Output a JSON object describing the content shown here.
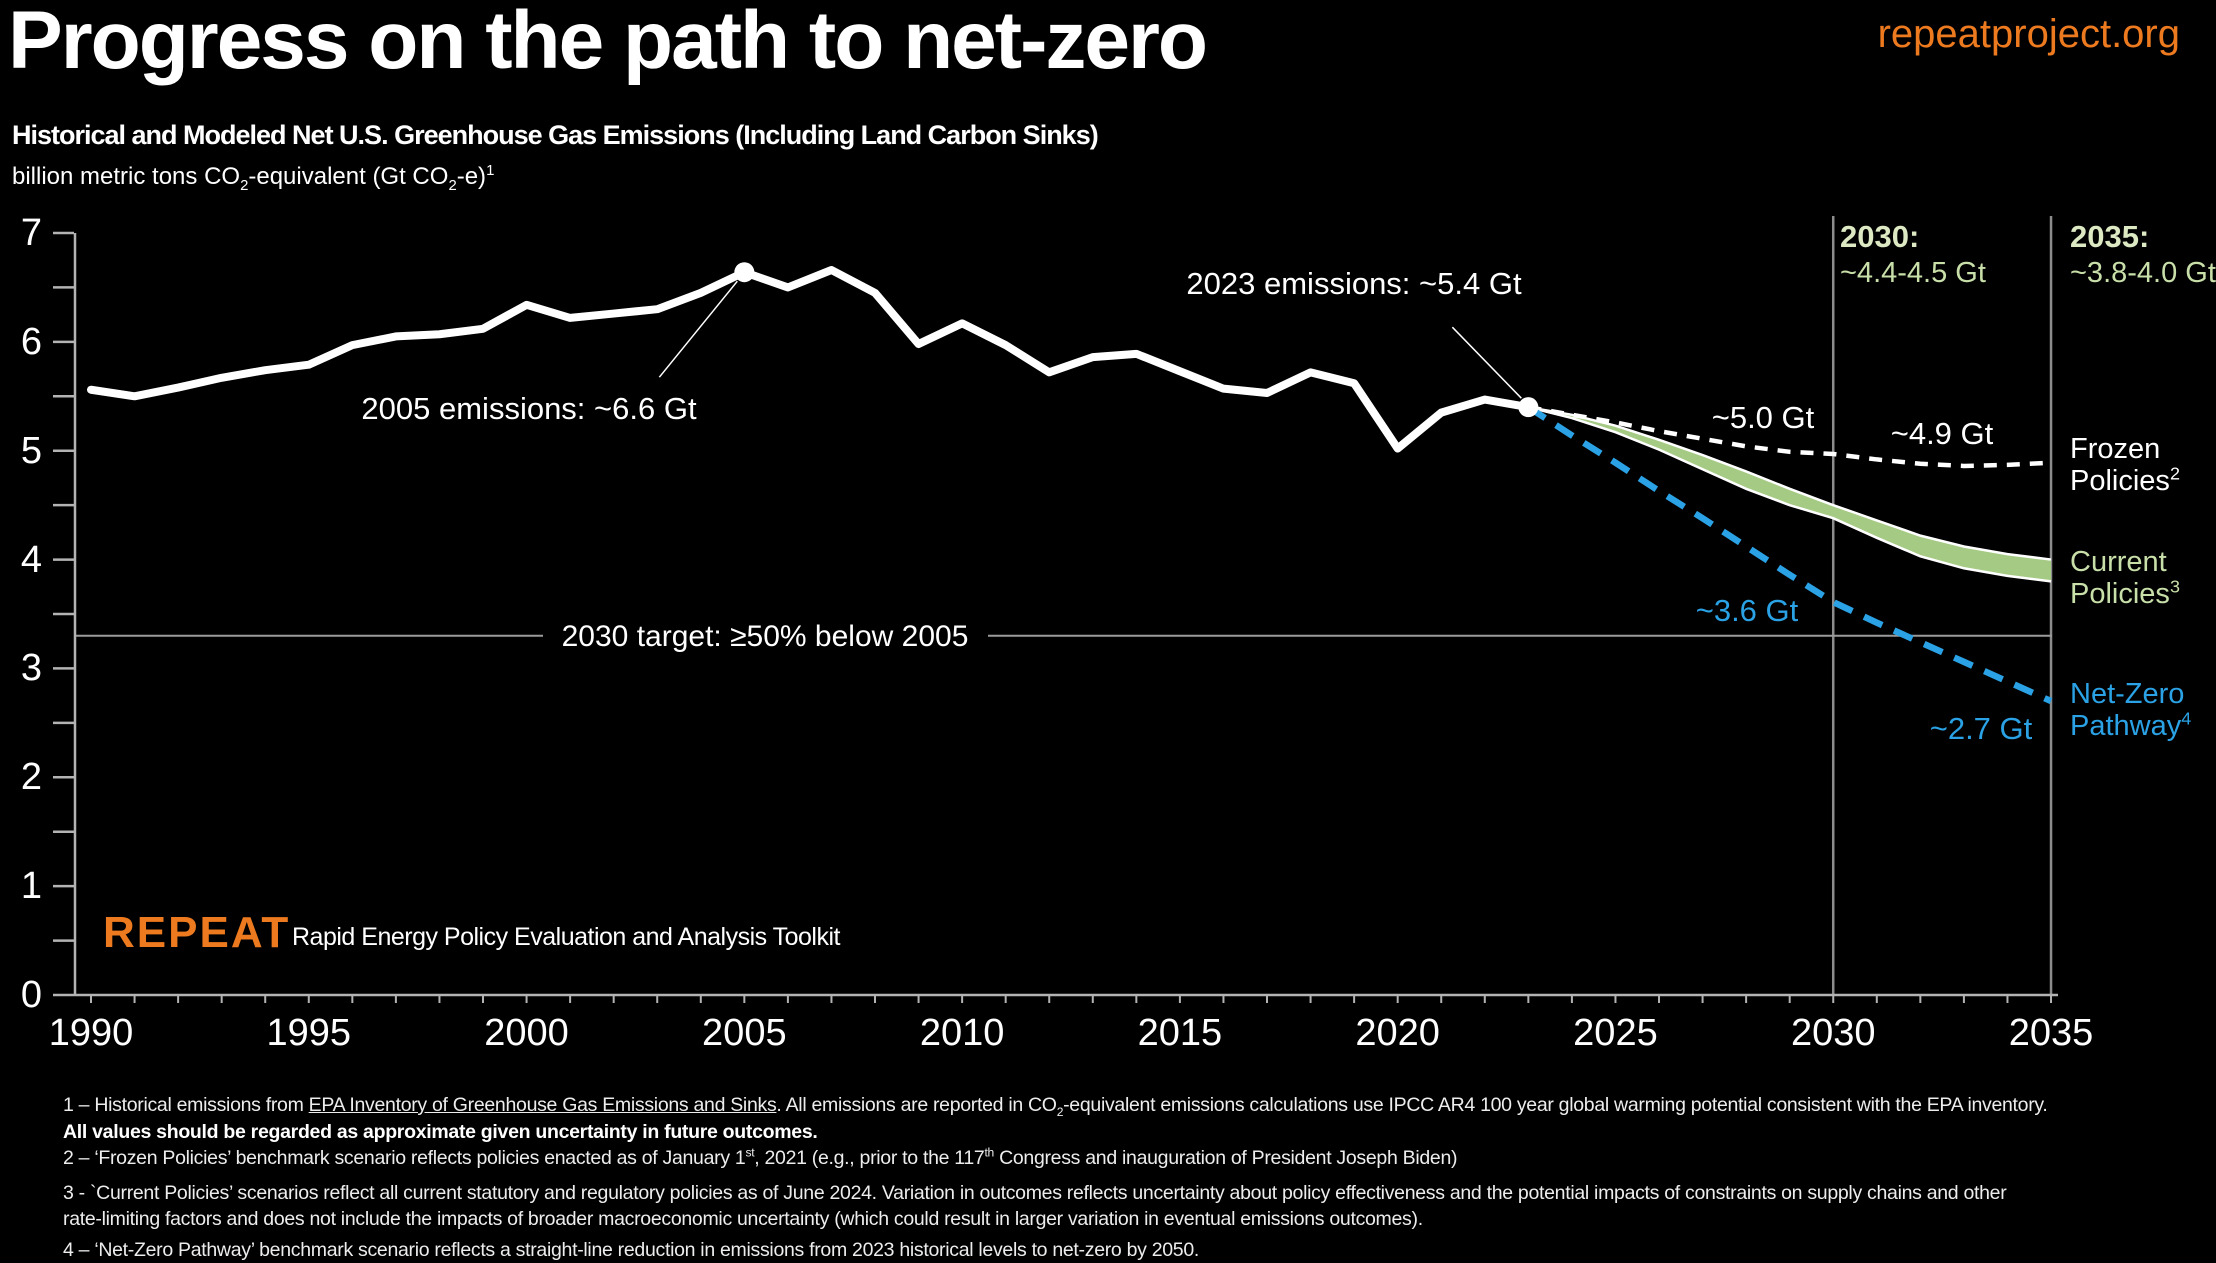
{
  "header": {
    "title": "Progress on the path to net-zero",
    "site": "repeatproject.org"
  },
  "chart_header": {
    "subtitle": "Historical and Modeled Net U.S. Greenhouse Gas Emissions (Including Land Carbon Sinks)"
  },
  "units_segments": [
    {
      "t": "billion metric tons CO"
    },
    {
      "t": "2",
      "s": "sub"
    },
    {
      "t": "-equivalent (Gt CO"
    },
    {
      "t": "2",
      "s": "sub"
    },
    {
      "t": "-e)"
    },
    {
      "t": "1",
      "s": "sup"
    }
  ],
  "logo": {
    "name": "REPEAT",
    "tagline": "Rapid Energy Policy Evaluation and Analysis Toolkit"
  },
  "annotations": {
    "e2005": "2005 emissions: ~6.6 Gt",
    "e2023": "2023 emissions: ~5.4 Gt",
    "target": "2030 target: ≥50% below 2005",
    "frozen_2030": "~5.0 Gt",
    "frozen_2035": "~4.9 Gt",
    "netzero_2030": "~3.6 Gt",
    "netzero_2035": "~2.7 Gt",
    "hdr_2030_year": "2030:",
    "hdr_2030_range": "~4.4-4.5 Gt",
    "hdr_2035_year": "2035:",
    "hdr_2035_range": "~3.8-4.0 Gt"
  },
  "scenario_labels": {
    "frozen": {
      "l1": [
        {
          "t": "Frozen"
        }
      ],
      "l2": [
        {
          "t": "Policies"
        },
        {
          "t": "2",
          "s": "sup"
        }
      ]
    },
    "current": {
      "l1": [
        {
          "t": "Current"
        }
      ],
      "l2": [
        {
          "t": "Policies"
        },
        {
          "t": "3",
          "s": "sup"
        }
      ]
    },
    "netzero": {
      "l1": [
        {
          "t": "Net-Zero"
        }
      ],
      "l2": [
        {
          "t": "Pathway"
        },
        {
          "t": "4",
          "s": "sup"
        }
      ]
    }
  },
  "footnotes": [
    {
      "seg": [
        {
          "t": "1 – Historical emissions from "
        },
        {
          "t": "EPA Inventory of Greenhouse Gas Emissions and Sinks",
          "s": "u"
        },
        {
          "t": ". All emissions are reported in CO"
        },
        {
          "t": "2",
          "s": "sub"
        },
        {
          "t": "-equivalent emissions calculations use IPCC AR4 100 year global warming potential consistent with the EPA inventory."
        }
      ]
    },
    {
      "seg": [
        {
          "t": "All values should be regarded as approximate given uncertainty in future outcomes.",
          "s": "b"
        }
      ]
    },
    {
      "seg": [
        {
          "t": "2 – ‘Frozen Policies’ benchmark scenario reflects policies enacted as of January 1"
        },
        {
          "t": "st",
          "s": "sup"
        },
        {
          "t": ", 2021 (e.g., prior to the 117"
        },
        {
          "t": "th",
          "s": "sup"
        },
        {
          "t": " Congress and inauguration of President Joseph Biden)"
        }
      ]
    },
    {
      "seg": [
        {
          "t": "3 - `Current Policies’ scenarios reflect all current statutory and regulatory policies as of June 2024. Variation in outcomes reflects uncertainty about policy effectiveness and the potential impacts of constraints on supply chains and other"
        }
      ]
    },
    {
      "seg": [
        {
          "t": "rate-limiting factors and does not include the impacts of broader macroeconomic uncertainty (which could result in larger variation in eventual emissions outcomes)."
        }
      ]
    },
    {
      "seg": [
        {
          "t": "4 – ‘Net-Zero Pathway’ benchmark scenario reflects a straight-line reduction in emissions from 2023 historical levels to net-zero by 2050."
        }
      ]
    }
  ],
  "colors": {
    "background": "#000000",
    "accent_orange": "#ED7A1F",
    "line_white": "#FFFFFF",
    "band_green": "#A5CA84",
    "text_green": "#C8DFA9",
    "blue": "#2AA2E5",
    "grid_gray": "#9B9B9B",
    "axis_gray": "#B3B3B3"
  },
  "chart_data": {
    "type": "line",
    "title": "Historical and Modeled Net U.S. Greenhouse Gas Emissions (Including Land Carbon Sinks)",
    "ylabel": "billion metric tons CO2-equivalent (Gt CO2-e)",
    "xlim": [
      1990,
      2035
    ],
    "ylim": [
      0,
      7
    ],
    "x_ticks": [
      1990,
      1995,
      2000,
      2005,
      2010,
      2015,
      2020,
      2025,
      2030,
      2035
    ],
    "y_ticks": [
      0,
      1,
      2,
      3,
      4,
      5,
      6,
      7
    ],
    "y_minor_tick_step": 0.5,
    "grid": false,
    "legend_position": "right",
    "target_line": {
      "value": 3.3,
      "label": "2030 target: ≥50% below 2005"
    },
    "ref_years": [
      2030,
      2035
    ],
    "series": [
      {
        "name": "Historical",
        "style": "solid",
        "color": "#FFFFFF",
        "years": [
          1990,
          1991,
          1992,
          1993,
          1994,
          1995,
          1996,
          1997,
          1998,
          1999,
          2000,
          2001,
          2002,
          2003,
          2004,
          2005,
          2006,
          2007,
          2008,
          2009,
          2010,
          2011,
          2012,
          2013,
          2014,
          2015,
          2016,
          2017,
          2018,
          2019,
          2020,
          2021,
          2022,
          2023
        ],
        "values": [
          5.56,
          5.5,
          5.58,
          5.67,
          5.74,
          5.79,
          5.97,
          6.05,
          6.07,
          6.12,
          6.34,
          6.22,
          6.26,
          6.3,
          6.45,
          6.64,
          6.5,
          6.66,
          6.45,
          5.98,
          6.17,
          5.97,
          5.72,
          5.86,
          5.89,
          5.73,
          5.57,
          5.53,
          5.72,
          5.62,
          5.02,
          5.35,
          5.47,
          5.4
        ]
      },
      {
        "name": "Frozen Policies",
        "style": "dashed",
        "color": "#FFFFFF",
        "years": [
          2023,
          2024,
          2025,
          2026,
          2027,
          2028,
          2029,
          2030,
          2031,
          2032,
          2033,
          2034,
          2035
        ],
        "values": [
          5.4,
          5.33,
          5.26,
          5.18,
          5.11,
          5.04,
          4.99,
          4.97,
          4.92,
          4.88,
          4.86,
          4.87,
          4.89
        ]
      },
      {
        "name": "Net-Zero Pathway",
        "style": "dashed",
        "color": "#2AA2E5",
        "years": [
          2023,
          2024,
          2025,
          2026,
          2027,
          2028,
          2029,
          2030,
          2031,
          2032,
          2033,
          2034,
          2035
        ],
        "values": [
          5.4,
          5.14,
          4.89,
          4.63,
          4.38,
          4.12,
          3.86,
          3.61,
          3.42,
          3.24,
          3.06,
          2.88,
          2.7
        ]
      }
    ],
    "band": {
      "name": "Current Policies",
      "color": "#A5CA84",
      "years": [
        2023,
        2024,
        2025,
        2026,
        2027,
        2028,
        2029,
        2030,
        2031,
        2032,
        2033,
        2034,
        2035
      ],
      "upper": [
        5.4,
        5.33,
        5.23,
        5.1,
        4.96,
        4.81,
        4.65,
        4.5,
        4.36,
        4.22,
        4.12,
        4.05,
        4.0
      ],
      "lower": [
        5.4,
        5.3,
        5.17,
        5.01,
        4.83,
        4.65,
        4.5,
        4.38,
        4.2,
        4.03,
        3.92,
        3.85,
        3.8
      ]
    },
    "points": [
      {
        "year": 2005,
        "value": 6.64,
        "label": "2005 emissions: ~6.6 Gt"
      },
      {
        "year": 2023,
        "value": 5.4,
        "label": "2023 emissions: ~5.4 Gt"
      }
    ],
    "scenario_values_2030": {
      "frozen": "~5.0 Gt",
      "current": "~4.4-4.5 Gt",
      "netzero": "~3.6 Gt"
    },
    "scenario_values_2035": {
      "frozen": "~4.9 Gt",
      "current": "~3.8-4.0 Gt",
      "netzero": "~2.7 Gt"
    }
  }
}
